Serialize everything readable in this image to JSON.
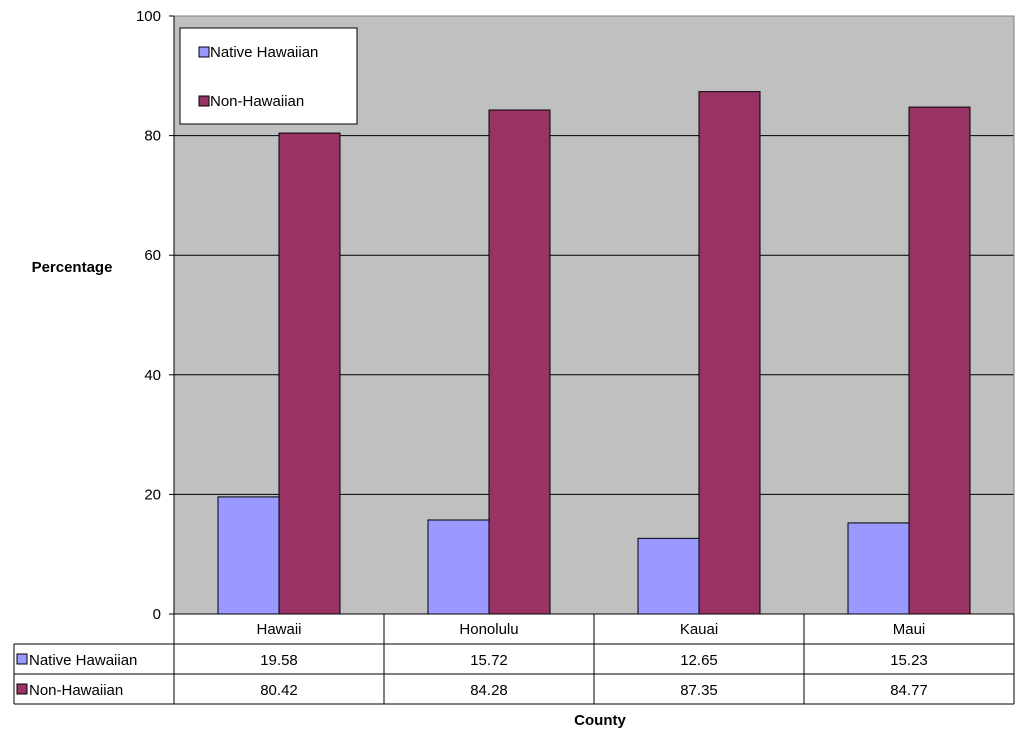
{
  "chart_data": {
    "type": "bar",
    "title": "",
    "xlabel": "County",
    "ylabel": "Percentage",
    "ylim": [
      0,
      100
    ],
    "yticks": [
      0,
      20,
      40,
      60,
      80,
      100
    ],
    "grid": true,
    "legend_position": "top-left",
    "categories": [
      "Hawaii",
      "Honolulu",
      "Kauai",
      "Maui"
    ],
    "series": [
      {
        "name": "Native Hawaiian",
        "color": "#9999ff",
        "values": [
          19.58,
          15.72,
          12.65,
          15.23
        ]
      },
      {
        "name": "Non-Hawaiian",
        "color": "#993366",
        "values": [
          80.42,
          84.28,
          87.35,
          84.77
        ]
      }
    ],
    "data_table": true,
    "plot_background": "#c0c0c0"
  }
}
